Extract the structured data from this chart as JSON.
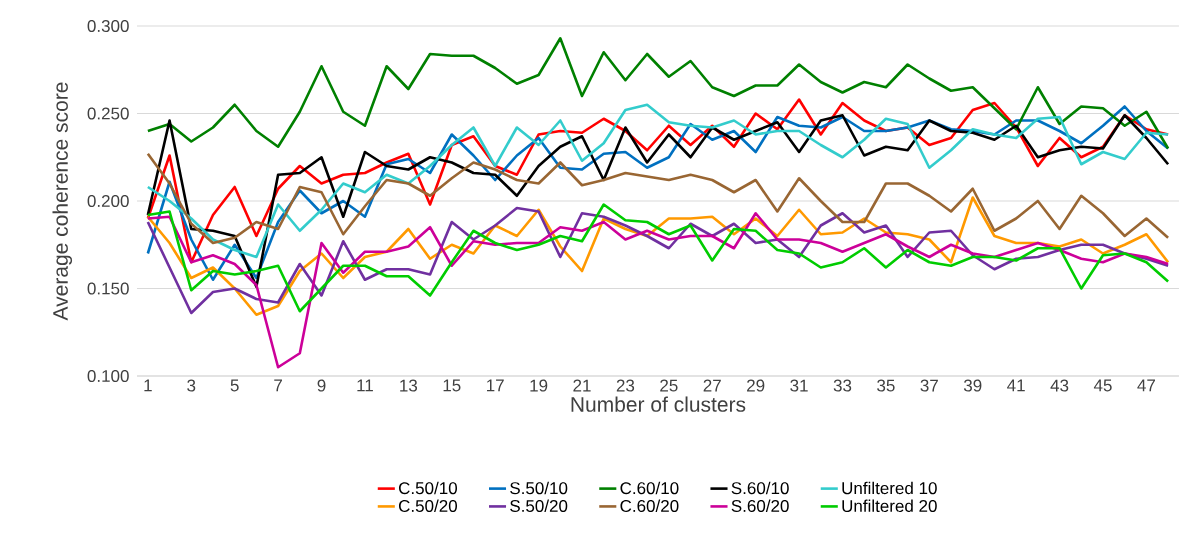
{
  "chart_data": {
    "type": "line",
    "xlabel": "Number of clusters",
    "ylabel": "Average coherence score",
    "categories": [
      "1",
      null,
      "3",
      null,
      "5",
      null,
      "7",
      null,
      "9",
      null,
      "11",
      null,
      "13",
      null,
      "15",
      null,
      "17",
      null,
      "19",
      null,
      "21",
      null,
      "23",
      null,
      "25",
      null,
      "27",
      null,
      "29",
      null,
      "31",
      null,
      "33",
      null,
      "35",
      null,
      "37",
      null,
      "39",
      null,
      "41",
      null,
      "43",
      null,
      "45",
      null,
      "47",
      null
    ],
    "ylim": [
      0.1,
      0.3
    ],
    "yticks": [
      {
        "value": 0.1,
        "label": "0.100"
      },
      {
        "value": 0.15,
        "label": "0.150"
      },
      {
        "value": 0.2,
        "label": "0.200"
      },
      {
        "value": 0.25,
        "label": "0.250"
      },
      {
        "value": 0.3,
        "label": "0.300"
      }
    ],
    "grid": "y",
    "legend": "bottom",
    "series": [
      {
        "name": "C.50/10",
        "color": "#ff0000",
        "values": [
          0.19,
          0.226,
          0.165,
          0.192,
          0.208,
          0.18,
          0.207,
          0.22,
          0.21,
          0.215,
          0.216,
          0.222,
          0.227,
          0.198,
          0.232,
          0.237,
          0.22,
          0.215,
          0.238,
          0.24,
          0.239,
          0.247,
          0.24,
          0.229,
          0.243,
          0.232,
          0.243,
          0.231,
          0.25,
          0.241,
          0.258,
          0.238,
          0.256,
          0.246,
          0.24,
          0.242,
          0.232,
          0.236,
          0.252,
          0.256,
          0.242,
          0.22,
          0.236,
          0.225,
          0.231,
          0.249,
          0.241,
          0.238
        ]
      },
      {
        "name": "S.50/10",
        "color": "#0070c0",
        "values": [
          0.17,
          0.211,
          0.178,
          0.155,
          0.175,
          0.156,
          0.188,
          0.206,
          0.193,
          0.2,
          0.191,
          0.221,
          0.224,
          0.216,
          0.238,
          0.226,
          0.212,
          0.226,
          0.236,
          0.219,
          0.218,
          0.227,
          0.228,
          0.219,
          0.225,
          0.244,
          0.235,
          0.24,
          0.228,
          0.248,
          0.243,
          0.242,
          0.248,
          0.24,
          0.24,
          0.242,
          0.246,
          0.241,
          0.24,
          0.238,
          0.246,
          0.246,
          0.24,
          0.233,
          0.243,
          0.254,
          0.24,
          0.23
        ]
      },
      {
        "name": "C.60/10",
        "color": "#008000",
        "values": [
          0.24,
          0.244,
          0.234,
          0.242,
          0.255,
          0.24,
          0.231,
          0.251,
          0.277,
          0.251,
          0.243,
          0.277,
          0.264,
          0.284,
          0.283,
          0.283,
          0.276,
          0.267,
          0.272,
          0.293,
          0.26,
          0.285,
          0.269,
          0.284,
          0.271,
          0.28,
          0.265,
          0.26,
          0.266,
          0.266,
          0.278,
          0.268,
          0.262,
          0.268,
          0.265,
          0.278,
          0.27,
          0.263,
          0.265,
          0.253,
          0.241,
          0.265,
          0.244,
          0.254,
          0.253,
          0.243,
          0.251,
          0.23
        ]
      },
      {
        "name": "S.60/10",
        "color": "#000000",
        "values": [
          0.192,
          0.246,
          0.184,
          0.183,
          0.18,
          0.151,
          0.215,
          0.216,
          0.225,
          0.191,
          0.228,
          0.22,
          0.218,
          0.225,
          0.222,
          0.216,
          0.215,
          0.203,
          0.22,
          0.231,
          0.237,
          0.212,
          0.242,
          0.222,
          0.238,
          0.225,
          0.242,
          0.235,
          0.24,
          0.245,
          0.228,
          0.246,
          0.249,
          0.226,
          0.231,
          0.229,
          0.246,
          0.24,
          0.239,
          0.235,
          0.243,
          0.225,
          0.229,
          0.231,
          0.23,
          0.249,
          0.236,
          0.221
        ]
      },
      {
        "name": "Unfiltered 10",
        "color": "#33cccc",
        "values": [
          0.208,
          0.2,
          0.19,
          0.178,
          0.172,
          0.168,
          0.198,
          0.183,
          0.195,
          0.21,
          0.205,
          0.215,
          0.21,
          0.22,
          0.232,
          0.242,
          0.22,
          0.242,
          0.232,
          0.246,
          0.223,
          0.233,
          0.252,
          0.255,
          0.245,
          0.243,
          0.242,
          0.246,
          0.238,
          0.24,
          0.24,
          0.232,
          0.225,
          0.235,
          0.247,
          0.244,
          0.219,
          0.229,
          0.241,
          0.238,
          0.236,
          0.247,
          0.248,
          0.221,
          0.228,
          0.224,
          0.239,
          0.238
        ]
      },
      {
        "name": "C.50/20",
        "color": "#ff9900",
        "values": [
          0.191,
          0.176,
          0.156,
          0.162,
          0.15,
          0.135,
          0.14,
          0.16,
          0.17,
          0.156,
          0.168,
          0.171,
          0.184,
          0.167,
          0.175,
          0.17,
          0.186,
          0.18,
          0.195,
          0.174,
          0.16,
          0.19,
          0.184,
          0.18,
          0.19,
          0.19,
          0.191,
          0.181,
          0.19,
          0.18,
          0.195,
          0.181,
          0.182,
          0.19,
          0.182,
          0.181,
          0.178,
          0.165,
          0.202,
          0.18,
          0.176,
          0.176,
          0.174,
          0.178,
          0.17,
          0.175,
          0.181,
          0.165
        ]
      },
      {
        "name": "S.50/20",
        "color": "#7030a0",
        "values": [
          0.188,
          0.162,
          0.136,
          0.148,
          0.15,
          0.144,
          0.142,
          0.164,
          0.146,
          0.177,
          0.155,
          0.161,
          0.161,
          0.158,
          0.188,
          0.178,
          0.186,
          0.196,
          0.194,
          0.168,
          0.193,
          0.191,
          0.186,
          0.18,
          0.173,
          0.187,
          0.18,
          0.187,
          0.176,
          0.178,
          0.168,
          0.186,
          0.193,
          0.182,
          0.186,
          0.168,
          0.182,
          0.183,
          0.169,
          0.161,
          0.167,
          0.168,
          0.172,
          0.175,
          0.175,
          0.17,
          0.167,
          0.163
        ]
      },
      {
        "name": "C.60/20",
        "color": "#996633",
        "values": [
          0.227,
          0.21,
          0.187,
          0.176,
          0.179,
          0.188,
          0.184,
          0.208,
          0.205,
          0.181,
          0.197,
          0.212,
          0.21,
          0.203,
          0.213,
          0.222,
          0.218,
          0.212,
          0.21,
          0.222,
          0.209,
          0.212,
          0.216,
          0.214,
          0.212,
          0.215,
          0.212,
          0.205,
          0.212,
          0.194,
          0.213,
          0.2,
          0.188,
          0.188,
          0.21,
          0.21,
          0.203,
          0.194,
          0.207,
          0.183,
          0.19,
          0.2,
          0.184,
          0.203,
          0.193,
          0.18,
          0.19,
          0.179
        ]
      },
      {
        "name": "S.60/20",
        "color": "#cc0099",
        "values": [
          0.19,
          0.191,
          0.165,
          0.169,
          0.164,
          0.152,
          0.105,
          0.113,
          0.176,
          0.159,
          0.171,
          0.171,
          0.174,
          0.185,
          0.163,
          0.177,
          0.175,
          0.176,
          0.176,
          0.185,
          0.183,
          0.188,
          0.178,
          0.183,
          0.178,
          0.18,
          0.18,
          0.173,
          0.193,
          0.178,
          0.178,
          0.176,
          0.171,
          0.176,
          0.181,
          0.174,
          0.168,
          0.175,
          0.17,
          0.168,
          0.172,
          0.176,
          0.172,
          0.167,
          0.165,
          0.17,
          0.168,
          0.164
        ]
      },
      {
        "name": "Unfiltered 20",
        "color": "#00cc00",
        "values": [
          0.192,
          0.194,
          0.149,
          0.16,
          0.158,
          0.16,
          0.163,
          0.137,
          0.15,
          0.163,
          0.163,
          0.157,
          0.157,
          0.146,
          0.165,
          0.183,
          0.176,
          0.172,
          0.175,
          0.18,
          0.177,
          0.198,
          0.189,
          0.188,
          0.181,
          0.186,
          0.166,
          0.184,
          0.183,
          0.172,
          0.17,
          0.162,
          0.165,
          0.173,
          0.162,
          0.172,
          0.165,
          0.163,
          0.168,
          0.168,
          0.166,
          0.173,
          0.173,
          0.15,
          0.169,
          0.17,
          0.165,
          0.154
        ]
      }
    ]
  }
}
